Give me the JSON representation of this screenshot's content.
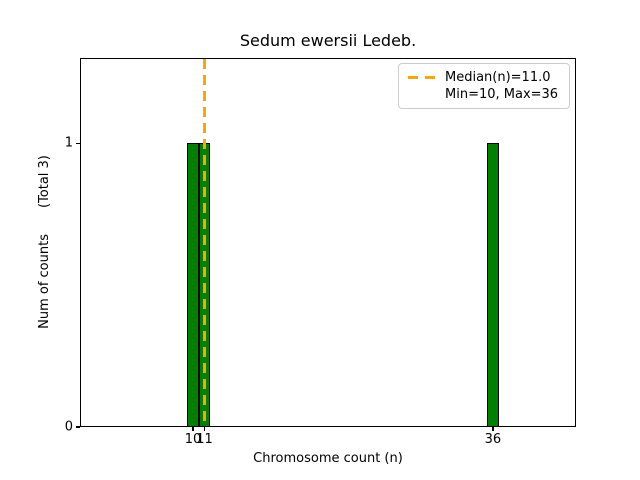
{
  "figure": {
    "title": "Sedum ewersii Ledeb.",
    "xlabel": "Chromosome count (n)",
    "ylabel": "Num of counts",
    "ylabel_secondary": "(Total 3)"
  },
  "legend": {
    "median_label": "Median(n)=11.0",
    "minmax_label": "Min=10, Max=36"
  },
  "chart_data": {
    "type": "bar",
    "title": "Sedum ewersii Ledeb.",
    "xlabel": "Chromosome count (n)",
    "ylabel": "Num of counts    (Total 3)",
    "x": [
      10,
      11,
      36
    ],
    "counts": [
      1,
      1,
      1
    ],
    "total_counts": 3,
    "median": 11.0,
    "min": 10,
    "max": 36,
    "bar_width": 1,
    "bar_color": "#008000",
    "bar_edge_color": "#000000",
    "median_line_color": "#FFA500",
    "median_line_style": "dashed",
    "xlim": [
      0.2,
      43.2
    ],
    "ylim": [
      0,
      1.3
    ],
    "xticks": [
      10,
      11,
      36
    ],
    "yticks": [
      0,
      1
    ],
    "grid": false,
    "legend_position": "upper right",
    "legend_entries": [
      "Median(n)=11.0",
      "Min=10, Max=36"
    ]
  }
}
